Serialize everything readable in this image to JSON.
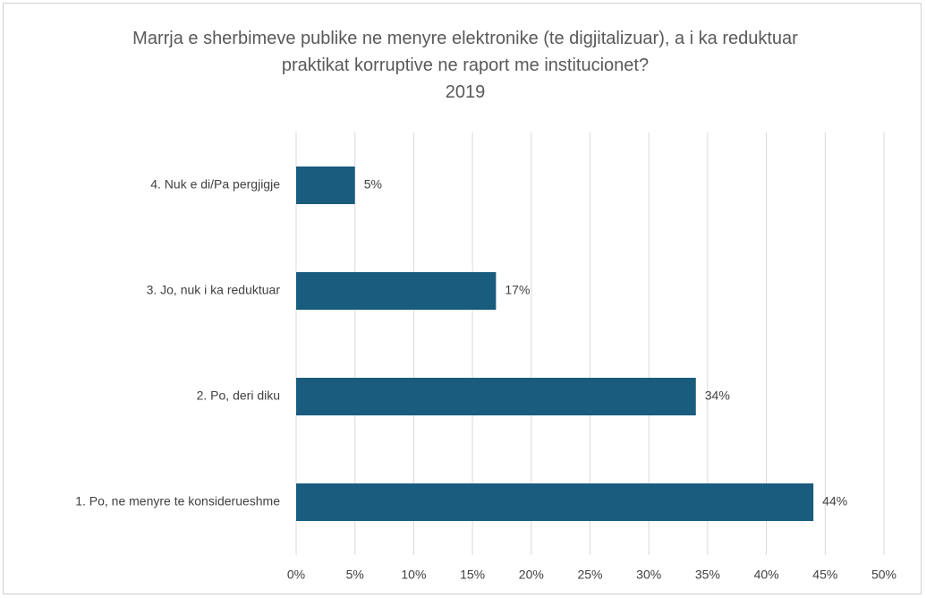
{
  "chart_data": {
    "type": "hbar",
    "title": "Marrja e sherbimeve publike ne menyre elektronike (te digjitalizuar), a i ka reduktuar praktikat korruptive ne raport me institucionet?",
    "subtitle": "2019",
    "categories": [
      "4. Nuk e di/Pa pergjigje",
      "3. Jo, nuk i ka reduktuar",
      "2. Po, deri diku",
      "1. Po, ne menyre te konsiderueshme"
    ],
    "values": [
      5,
      17,
      34,
      44
    ],
    "value_labels": [
      "5%",
      "17%",
      "34%",
      "44%"
    ],
    "color": "#1a5c7d",
    "xlim": [
      0,
      50
    ],
    "xticks": [
      {
        "value": 0,
        "label": "0%"
      },
      {
        "value": 5,
        "label": "5%"
      },
      {
        "value": 10,
        "label": "10%"
      },
      {
        "value": 15,
        "label": "15%"
      },
      {
        "value": 20,
        "label": "20%"
      },
      {
        "value": 25,
        "label": "25%"
      },
      {
        "value": 30,
        "label": "30%"
      },
      {
        "value": 35,
        "label": "35%"
      },
      {
        "value": 40,
        "label": "40%"
      },
      {
        "value": 45,
        "label": "45%"
      },
      {
        "value": 50,
        "label": "50%"
      }
    ],
    "grid": true
  }
}
